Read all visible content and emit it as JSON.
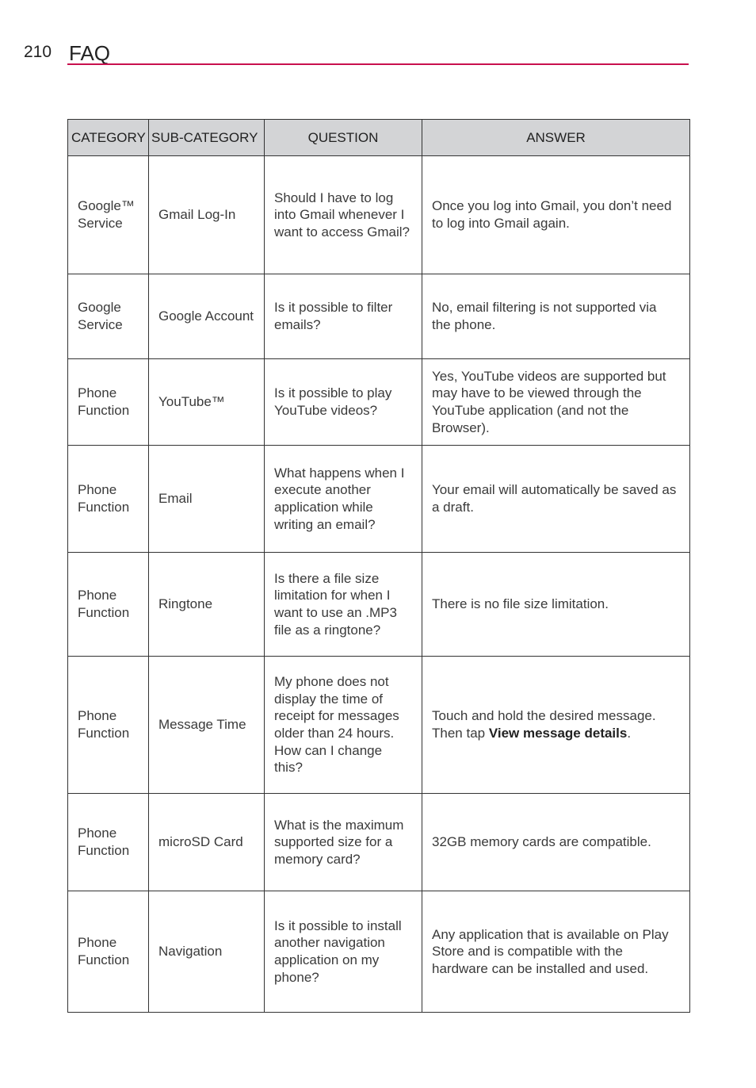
{
  "page_number": "210",
  "title": "FAQ",
  "accent_color": "#c8104e",
  "header_bg": "#d3d4d6",
  "table": {
    "headers": [
      "CATEGORY",
      "SUB-CATEGORY",
      "QUESTION",
      "ANSWER"
    ],
    "rows": [
      {
        "category": "Google™ Service",
        "sub": "Gmail Log-In",
        "question": "Should I have to log into Gmail whenever I want to access Gmail?",
        "answer": "Once you log into Gmail, you don’t need to log into Gmail again."
      },
      {
        "category": "Google Service",
        "sub": "Google Account",
        "question": "Is it possible to filter emails?",
        "answer": "No, email filtering is not supported via the phone."
      },
      {
        "category": "Phone Function",
        "sub": "YouTube™",
        "question": "Is it possible to play YouTube videos?",
        "answer": "Yes, YouTube videos are supported but may have to be viewed through the YouTube application (and not the Browser)."
      },
      {
        "category": "Phone Function",
        "sub": "Email",
        "question": "What happens when I execute another application while writing an email?",
        "answer": "Your email will automatically be saved as a draft."
      },
      {
        "category": "Phone Function",
        "sub": "Ringtone",
        "question": "Is there a file size limitation for when I want to use an .MP3 file as a ringtone?",
        "answer": "There is no file size limitation."
      },
      {
        "category": "Phone Function",
        "sub": "Message Time",
        "question": "My phone does not display the time of receipt for messages older than 24 hours. How can I change this?",
        "answer": "Touch and hold the desired message. Then tap ",
        "answer_bold": "View message details",
        "answer_end": "."
      },
      {
        "category": "Phone Function",
        "sub": "microSD Card",
        "question": "What is the maximum supported size for a memory card?",
        "answer": "32GB memory cards are compatible."
      },
      {
        "category": "Phone Function",
        "sub": "Navigation",
        "question": "Is it possible to install another navigation application on my phone?",
        "answer": "Any application that is available on Play Store and is compatible with the hardware can be installed and used."
      }
    ]
  }
}
